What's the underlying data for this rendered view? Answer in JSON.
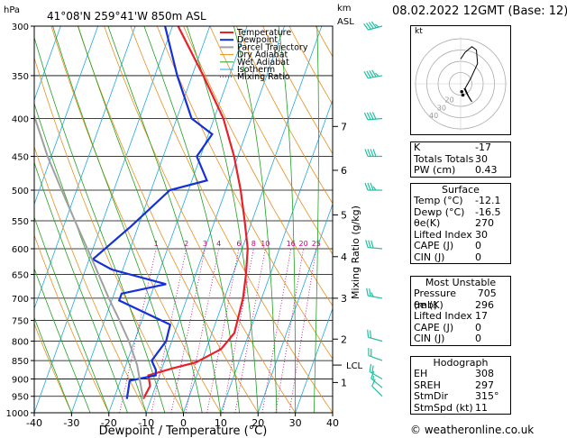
{
  "header": {
    "location": "41°08'N  259°41'W  850m  ASL",
    "datetime": "08.02.2022  12GMT  (Base: 12)",
    "left_unit": "hPa",
    "km_unit": "km",
    "asl_unit": "ASL"
  },
  "chart_data": {
    "type": "line",
    "title": "",
    "xlabel": "Dewpoint / Temperature (°C)",
    "ylabel": "Mixing Ratio (g/kg)",
    "xlim": [
      -40,
      40
    ],
    "ylim": [
      1000,
      300
    ],
    "y_scale": "log-pressure",
    "x_ticks": [
      "-40",
      "-30",
      "-20",
      "-10",
      "0",
      "10",
      "20",
      "30",
      "40"
    ],
    "pressure_ticks": [
      "300",
      "350",
      "400",
      "450",
      "500",
      "550",
      "600",
      "650",
      "700",
      "750",
      "800",
      "850",
      "900",
      "950",
      "1000"
    ],
    "km_ticks": [
      {
        "label": "1",
        "p": 910
      },
      {
        "label": "2",
        "p": 795
      },
      {
        "label": "3",
        "p": 700
      },
      {
        "label": "4",
        "p": 615
      },
      {
        "label": "5",
        "p": 540
      },
      {
        "label": "6",
        "p": 470
      },
      {
        "label": "7",
        "p": 410
      }
    ],
    "lcl": {
      "label": "LCL",
      "p": 862
    },
    "mixing_ratio_labels": [
      "1",
      "2",
      "3",
      "4",
      "6",
      "8",
      "10",
      "16",
      "20",
      "25"
    ],
    "legend": [
      "Temperature",
      "Dewpoint",
      "Parcel Trajectory",
      "Dry Adiabat",
      "Wet Adiabat",
      "Isotherm",
      "Mixing Ratio"
    ],
    "legend_position": "top-right",
    "series": [
      {
        "name": "Temperature",
        "color": "#e8202a",
        "points": [
          [
            958,
            -12.1
          ],
          [
            920,
            -11.5
          ],
          [
            890,
            -13.0
          ],
          [
            870,
            -7.0
          ],
          [
            855,
            -1.5
          ],
          [
            820,
            4.0
          ],
          [
            780,
            6.0
          ],
          [
            700,
            5.0
          ],
          [
            650,
            3.5
          ],
          [
            600,
            1.5
          ],
          [
            550,
            -2.0
          ],
          [
            500,
            -6.0
          ],
          [
            450,
            -11.0
          ],
          [
            400,
            -17.5
          ],
          [
            350,
            -27.0
          ],
          [
            300,
            -38.5
          ]
        ]
      },
      {
        "name": "Dewpoint",
        "color": "#1530d8",
        "points": [
          [
            958,
            -16.5
          ],
          [
            930,
            -17.0
          ],
          [
            905,
            -17.5
          ],
          [
            890,
            -11.0
          ],
          [
            875,
            -11.5
          ],
          [
            850,
            -13.5
          ],
          [
            800,
            -11.5
          ],
          [
            760,
            -12.0
          ],
          [
            705,
            -28.0
          ],
          [
            690,
            -28.0
          ],
          [
            670,
            -17.0
          ],
          [
            640,
            -33.0
          ],
          [
            620,
            -39.0
          ],
          [
            560,
            -32.0
          ],
          [
            500,
            -25.0
          ],
          [
            485,
            -16.0
          ],
          [
            450,
            -21.0
          ],
          [
            420,
            -19.0
          ],
          [
            400,
            -26.0
          ],
          [
            350,
            -34.0
          ],
          [
            300,
            -42.0
          ]
        ]
      },
      {
        "name": "Parcel Trajectory",
        "color": "#a0a0a0",
        "points": [
          [
            958,
            -12.1
          ],
          [
            900,
            -15.0
          ],
          [
            862,
            -17.0
          ],
          [
            800,
            -21.5
          ],
          [
            750,
            -26.0
          ],
          [
            700,
            -31.0
          ],
          [
            650,
            -36.0
          ],
          [
            600,
            -41.5
          ],
          [
            550,
            -47.5
          ],
          [
            500,
            -54.0
          ],
          [
            450,
            -61.0
          ],
          [
            400,
            -68.0
          ],
          [
            350,
            -76.0
          ]
        ]
      }
    ],
    "wind_barbs": [
      {
        "p": 950,
        "dir": 315,
        "spd": 11
      },
      {
        "p": 925,
        "dir": 310,
        "spd": 15
      },
      {
        "p": 900,
        "dir": 300,
        "spd": 20
      },
      {
        "p": 850,
        "dir": 290,
        "spd": 20
      },
      {
        "p": 800,
        "dir": 285,
        "spd": 20
      },
      {
        "p": 700,
        "dir": 280,
        "spd": 25
      },
      {
        "p": 600,
        "dir": 275,
        "spd": 30
      },
      {
        "p": 500,
        "dir": 270,
        "spd": 35
      },
      {
        "p": 450,
        "dir": 270,
        "spd": 40
      },
      {
        "p": 400,
        "dir": 265,
        "spd": 40
      },
      {
        "p": 350,
        "dir": 260,
        "spd": 45
      },
      {
        "p": 300,
        "dir": 255,
        "spd": 45
      }
    ],
    "hodograph": {
      "unit": "kt",
      "rings": [
        "10",
        "20",
        "30",
        "40"
      ],
      "ring_labels": [
        "40",
        "30",
        "20"
      ],
      "trace_uv": [
        [
          3,
          -4
        ],
        [
          5,
          -8
        ],
        [
          8,
          -13
        ],
        [
          10,
          -16
        ],
        [
          7,
          -11
        ],
        [
          4,
          -4
        ],
        [
          9,
          5
        ],
        [
          15,
          18
        ],
        [
          14,
          30
        ],
        [
          10,
          33
        ],
        [
          4,
          28
        ],
        [
          0,
          22
        ]
      ],
      "storm_motion_uv": [
        [
          1,
          -7
        ],
        [
          2,
          -10
        ]
      ]
    }
  },
  "indices": [
    {
      "label": "K",
      "value": "-17"
    },
    {
      "label": "Totals Totals",
      "value": "30"
    },
    {
      "label": "PW (cm)",
      "value": "0.43"
    }
  ],
  "surface": {
    "title": "Surface",
    "rows": [
      {
        "label": "Temp (°C)",
        "value": "-12.1"
      },
      {
        "label": "Dewp (°C)",
        "value": "-16.5"
      },
      {
        "label": "θe(K)",
        "value": "270"
      },
      {
        "label": "Lifted Index",
        "value": "30"
      },
      {
        "label": "CAPE (J)",
        "value": "0"
      },
      {
        "label": "CIN (J)",
        "value": "0"
      }
    ]
  },
  "most_unstable": {
    "title": "Most Unstable",
    "rows": [
      {
        "label": "Pressure (mb)",
        "value": "705"
      },
      {
        "label": "θe (K)",
        "value": "296"
      },
      {
        "label": "Lifted Index",
        "value": "17"
      },
      {
        "label": "CAPE (J)",
        "value": "0"
      },
      {
        "label": "CIN (J)",
        "value": "0"
      }
    ]
  },
  "hodograph_table": {
    "title": "Hodograph",
    "rows": [
      {
        "label": "EH",
        "value": "308"
      },
      {
        "label": "SREH",
        "value": "297"
      },
      {
        "label": "StmDir",
        "value": "315°"
      },
      {
        "label": "StmSpd (kt)",
        "value": "11"
      }
    ]
  },
  "footer": "© weatheronline.co.uk",
  "colors": {
    "temperature": "#e8202a",
    "dewpoint": "#1530d8",
    "parcel": "#a0a0a0",
    "dry_adiabat": "#e89020",
    "wet_adiabat": "#20a020",
    "isotherm": "#20a8e0",
    "mixing_ratio": "#c0007a",
    "barb": "#20c0a0"
  }
}
